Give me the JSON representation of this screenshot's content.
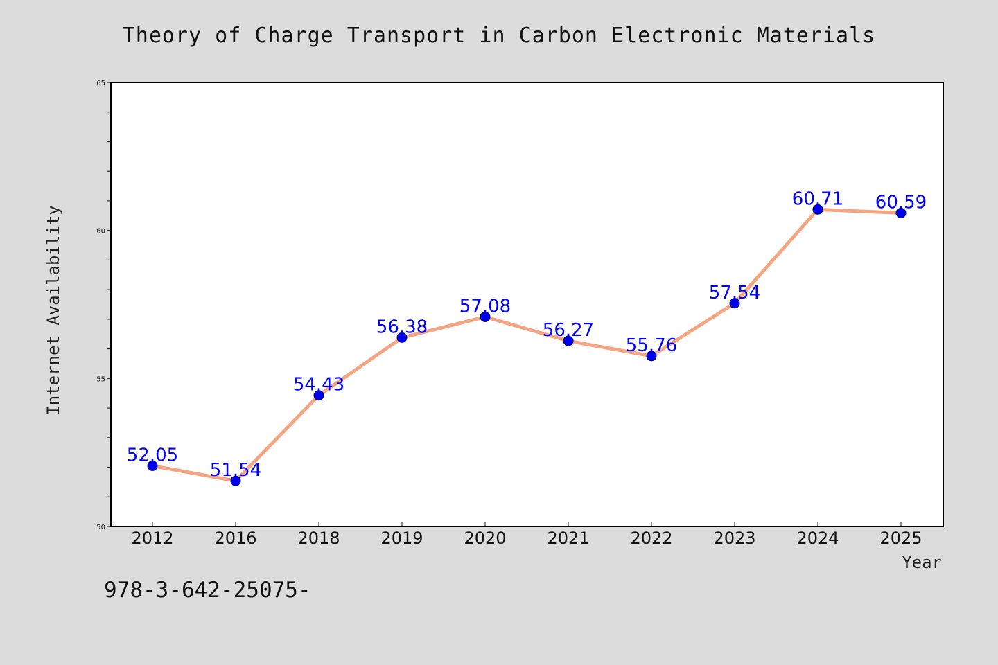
{
  "chart_data": {
    "type": "line",
    "title": "Theory of Charge Transport in Carbon Electronic Materials",
    "xlabel": "Year",
    "ylabel": "Internet Availability",
    "categories": [
      "2012",
      "2016",
      "2018",
      "2019",
      "2020",
      "2021",
      "2022",
      "2023",
      "2024",
      "2025"
    ],
    "values": [
      52.05,
      51.54,
      54.43,
      56.38,
      57.08,
      56.27,
      55.76,
      57.54,
      60.71,
      60.59
    ],
    "data_labels": [
      "52.05",
      "51.54",
      "54.43",
      "56.38",
      "57.08",
      "56.27",
      "55.76",
      "57.54",
      "60.71",
      "60.59"
    ],
    "ylim": [
      50,
      65
    ],
    "y_ticks": [
      "50",
      "55",
      "60",
      "65"
    ],
    "grid": false,
    "legend": "none",
    "line_color": "#f4a582",
    "marker_color": "#0000ee"
  },
  "footer": {
    "isbn": "978-3-642-25075-"
  }
}
